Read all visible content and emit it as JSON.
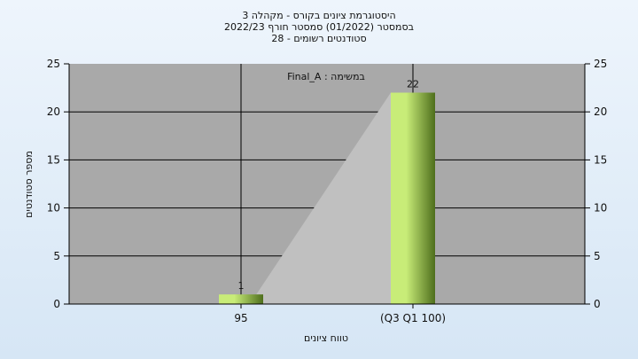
{
  "chart_data": {
    "type": "bar",
    "title_lines": [
      "היסטוגרמת ציונים בקורס - מקהלה 3",
      "בסמסטר  (01/2022)  סמסטר חורף  2022/23",
      "סטודנטים רשומים - 28"
    ],
    "annotation": "במשימה : Final_A",
    "xlabel": "טווח ציונים",
    "ylabel": "מספר סטודנטים",
    "categories": [
      "95",
      "(Q3 Q1 100)"
    ],
    "values": [
      1,
      22
    ],
    "data_labels": [
      "1",
      "22"
    ],
    "ylim": [
      0,
      25
    ],
    "yticks": [
      0,
      5,
      10,
      15,
      20,
      25
    ],
    "grid": true,
    "secondary_y_axis": true,
    "colors": {
      "plot_bg": "#a9a9a9",
      "bar_light": "#c8ec78",
      "bar_dark": "#4e6e1c",
      "area": "#c0c0c0",
      "grid": "#000000"
    }
  }
}
